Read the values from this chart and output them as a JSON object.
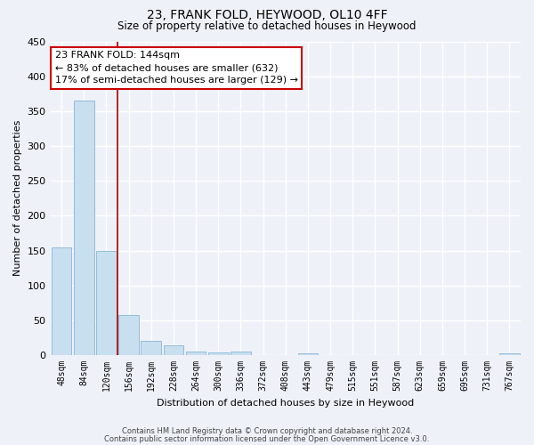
{
  "title": "23, FRANK FOLD, HEYWOOD, OL10 4FF",
  "subtitle": "Size of property relative to detached houses in Heywood",
  "xlabel": "Distribution of detached houses by size in Heywood",
  "ylabel": "Number of detached properties",
  "bin_labels": [
    "48sqm",
    "84sqm",
    "120sqm",
    "156sqm",
    "192sqm",
    "228sqm",
    "264sqm",
    "300sqm",
    "336sqm",
    "372sqm",
    "408sqm",
    "443sqm",
    "479sqm",
    "515sqm",
    "551sqm",
    "587sqm",
    "623sqm",
    "659sqm",
    "695sqm",
    "731sqm",
    "767sqm"
  ],
  "bar_heights": [
    155,
    365,
    150,
    58,
    20,
    14,
    5,
    4,
    5,
    0,
    0,
    3,
    0,
    0,
    0,
    0,
    0,
    0,
    0,
    0,
    3
  ],
  "bar_color": "#c8dff0",
  "bar_edge_color": "#8ab4d4",
  "ylim": [
    0,
    450
  ],
  "yticks": [
    0,
    50,
    100,
    150,
    200,
    250,
    300,
    350,
    400,
    450
  ],
  "vline_x": 2.5,
  "vline_color": "#aa0000",
  "annotation_text": "23 FRANK FOLD: 144sqm\n← 83% of detached houses are smaller (632)\n17% of semi-detached houses are larger (129) →",
  "annotation_box_color": "#ffffff",
  "annotation_box_edge_color": "#cc0000",
  "footer_line1": "Contains HM Land Registry data © Crown copyright and database right 2024.",
  "footer_line2": "Contains public sector information licensed under the Open Government Licence v3.0.",
  "background_color": "#eef2f8",
  "grid_color": "#ffffff"
}
